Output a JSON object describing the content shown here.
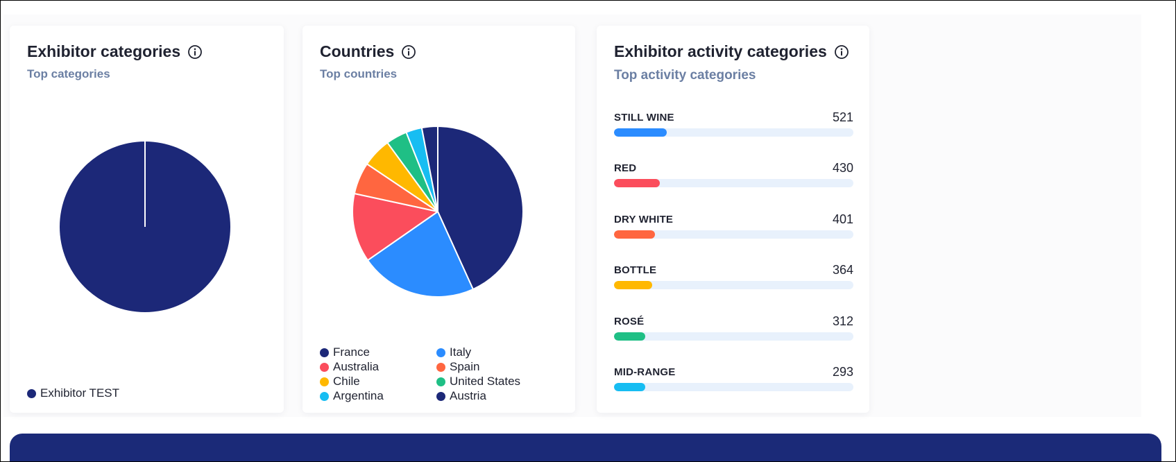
{
  "cards": {
    "exhibitor_categories": {
      "title": "Exhibitor categories",
      "subtitle": "Top categories",
      "info_icon": "info-icon",
      "legend": [
        {
          "label": "Exhibitor TEST",
          "color": "#1c2878"
        }
      ]
    },
    "countries": {
      "title": "Countries",
      "subtitle": "Top countries",
      "info_icon": "info-icon",
      "legend": [
        {
          "label": "France",
          "color": "#1c2878"
        },
        {
          "label": "Italy",
          "color": "#2b8cff"
        },
        {
          "label": "Australia",
          "color": "#fb4d5c"
        },
        {
          "label": "Spain",
          "color": "#ff6640"
        },
        {
          "label": "Chile",
          "color": "#ffb800"
        },
        {
          "label": "United States",
          "color": "#1fbf85"
        },
        {
          "label": "Argentina",
          "color": "#17bdf2"
        },
        {
          "label": "Austria",
          "color": "#1c2878"
        }
      ]
    },
    "activity_categories": {
      "title": "Exhibitor activity categories",
      "subtitle": "Top activity categories",
      "info_icon": "info-icon",
      "bars": [
        {
          "label": "STILL WINE",
          "value": "521",
          "fill": 0.22,
          "color": "#2b8cff"
        },
        {
          "label": "RED",
          "value": "430",
          "fill": 0.19,
          "color": "#fb4d5c"
        },
        {
          "label": "DRY WHITE",
          "value": "401",
          "fill": 0.17,
          "color": "#ff6640"
        },
        {
          "label": "BOTTLE",
          "value": "364",
          "fill": 0.16,
          "color": "#ffb800"
        },
        {
          "label": "ROSÉ",
          "value": "312",
          "fill": 0.13,
          "color": "#1fbf85"
        },
        {
          "label": "MID-RANGE",
          "value": "293",
          "fill": 0.13,
          "color": "#17bdf2"
        }
      ]
    }
  },
  "chart_data": [
    {
      "type": "pie",
      "categories": [
        "Exhibitor TEST"
      ],
      "values": [
        100
      ],
      "colors": [
        "#1c2878"
      ]
    },
    {
      "type": "pie",
      "categories": [
        "France",
        "Italy",
        "Australia",
        "Spain",
        "Chile",
        "United States",
        "Argentina",
        "Austria"
      ],
      "values": [
        43,
        22,
        13,
        6,
        5.5,
        4,
        3,
        3
      ],
      "colors": [
        "#1c2878",
        "#2b8cff",
        "#fb4d5c",
        "#ff6640",
        "#ffb800",
        "#1fbf85",
        "#17bdf2",
        "#1c2878"
      ]
    }
  ]
}
